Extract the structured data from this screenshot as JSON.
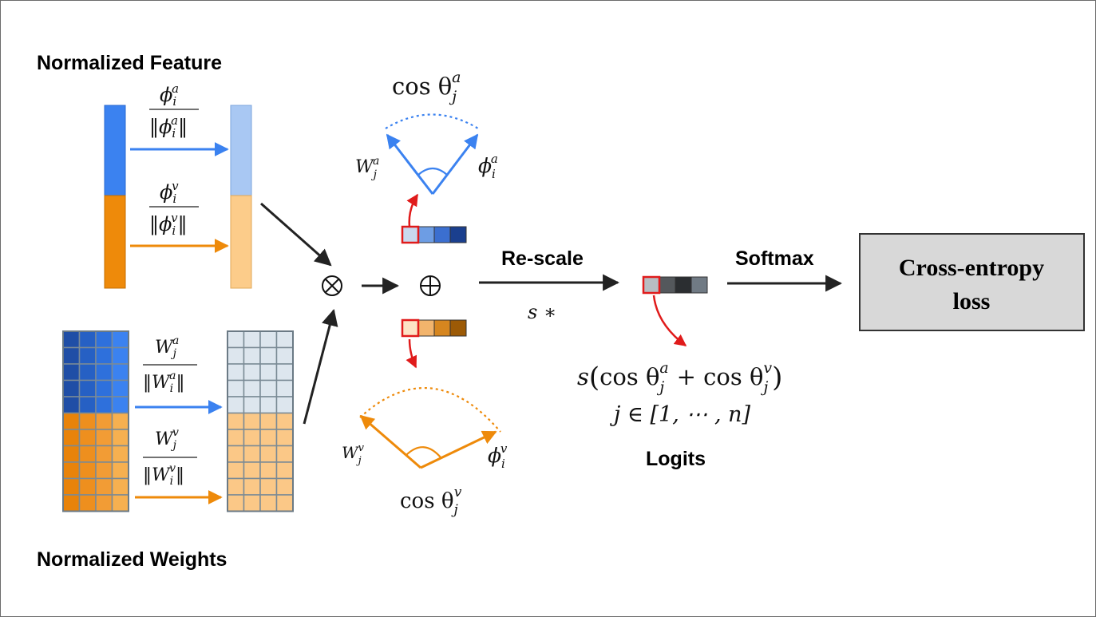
{
  "labels": {
    "normalized_feature": "Normalized Feature",
    "normalized_weights": "Normalized Weights",
    "rescale": "Re-scale",
    "softmax": "Softmax",
    "logits": "Logits",
    "cross_entropy_line1": "Cross-entropy",
    "cross_entropy_line2": "loss"
  },
  "math": {
    "phi_a_num": "ϕ",
    "phi_a_num_sub": "i",
    "phi_a_num_sup": "a",
    "phi_v_num": "ϕ",
    "phi_v_num_sub": "i",
    "phi_v_num_sup": "v",
    "w_a_num": "W",
    "w_a_num_sub": "j",
    "w_a_num_sup": "a",
    "w_v_num": "W",
    "w_v_num_sub": "j",
    "w_v_num_sup": "v",
    "w_a_den_sub": "i",
    "w_v_den_sub": "i",
    "cos": "cos θ",
    "cos_a_sub": "j",
    "cos_a_sup": "a",
    "cos_v_sub": "j",
    "cos_v_sup": "v",
    "top_w_label_sub": "j",
    "top_w_label_sup": "a",
    "top_phi_label_sub": "i",
    "top_phi_label_sup": "a",
    "bot_w_label_sub": "j",
    "bot_w_label_sup": "v",
    "bot_phi_label_sub": "i",
    "bot_phi_label_sup": "v",
    "otimes": "⊗",
    "oplus": "⊕",
    "s_star": "s ∗",
    "logit_formula_s": "s",
    "logit_formula_mid": "+ cos θ",
    "logit_formula_range": "j ∈ [1, ⋯ , n]"
  },
  "colors": {
    "blue": "#3b82f0",
    "blue_light": "#a9c8f3",
    "orange": "#ee8a0a",
    "orange_light": "#fccc8a",
    "red": "#e01b1b",
    "dark": "#222222",
    "box_fill": "#d8d8d8",
    "grid_line": "#7a8a95"
  },
  "icons": {
    "otimes": "circle-times-icon",
    "oplus": "circle-plus-icon"
  }
}
